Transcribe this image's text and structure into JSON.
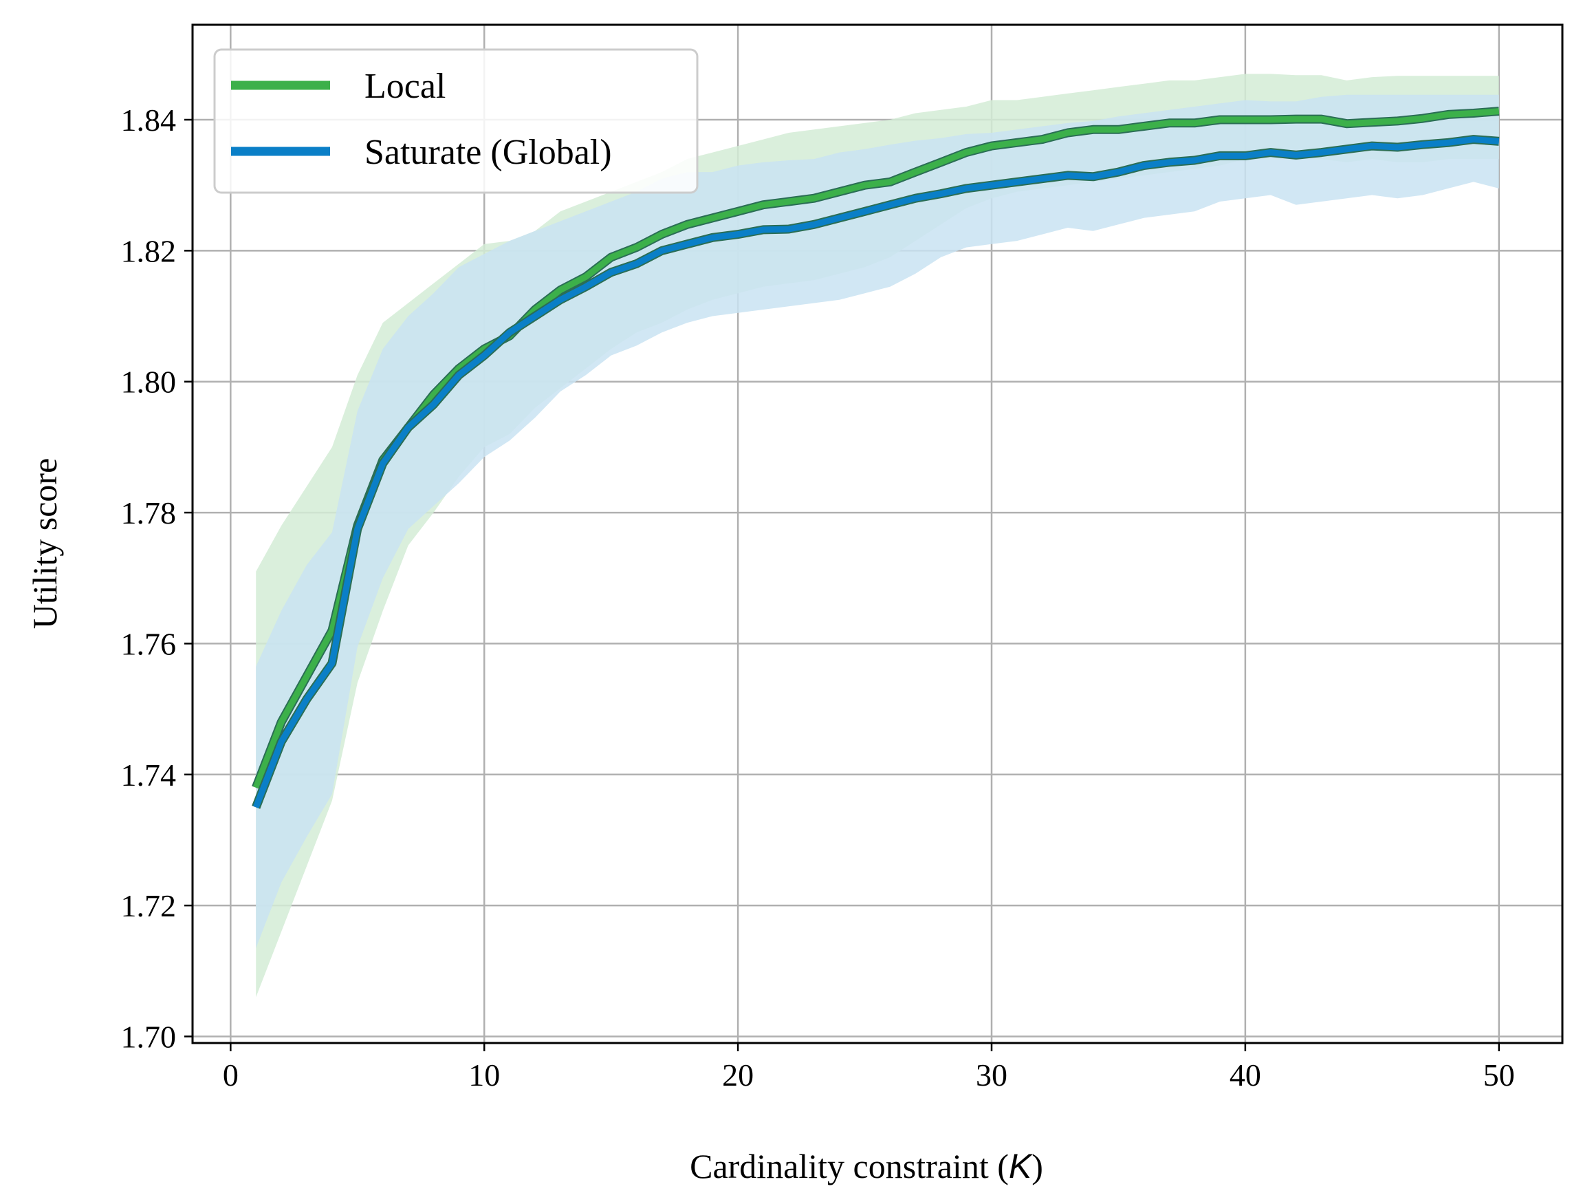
{
  "chart_data": {
    "type": "line",
    "title": "",
    "xlabel_prefix": "Cardinality constraint (",
    "xlabel_var": "K",
    "xlabel_suffix": ")",
    "ylabel": "Utility score",
    "xlim": [
      -1.5,
      52.5
    ],
    "ylim": [
      1.699,
      1.8545
    ],
    "xticks": [
      0,
      10,
      20,
      30,
      40,
      50
    ],
    "xtick_labels": [
      "0",
      "10",
      "20",
      "30",
      "40",
      "50"
    ],
    "yticks": [
      1.7,
      1.72,
      1.74,
      1.76,
      1.78,
      1.8,
      1.82,
      1.84
    ],
    "ytick_labels": [
      "1.70",
      "1.72",
      "1.74",
      "1.76",
      "1.78",
      "1.80",
      "1.82",
      "1.84"
    ],
    "grid": true,
    "legend_position": "top-left",
    "x": [
      1,
      2,
      3,
      4,
      5,
      6,
      7,
      8,
      9,
      10,
      11,
      12,
      13,
      14,
      15,
      16,
      17,
      18,
      19,
      20,
      21,
      22,
      23,
      24,
      25,
      26,
      27,
      28,
      29,
      30,
      31,
      32,
      33,
      34,
      35,
      36,
      37,
      38,
      39,
      40,
      41,
      42,
      43,
      44,
      45,
      46,
      47,
      48,
      49,
      50
    ],
    "series": [
      {
        "name": "Local",
        "color": "#3cb04a",
        "band_color": "#d4ecd6",
        "values": [
          1.738,
          1.748,
          1.755,
          1.762,
          1.778,
          1.788,
          1.793,
          1.798,
          1.802,
          1.805,
          1.807,
          1.811,
          1.814,
          1.816,
          1.819,
          1.8205,
          1.8225,
          1.824,
          1.825,
          1.826,
          1.827,
          1.8275,
          1.828,
          1.829,
          1.83,
          1.8305,
          1.832,
          1.8335,
          1.835,
          1.836,
          1.8365,
          1.837,
          1.838,
          1.8385,
          1.8385,
          1.839,
          1.8395,
          1.8395,
          1.84,
          1.84,
          1.84,
          1.8401,
          1.8401,
          1.8394,
          1.8396,
          1.8398,
          1.8402,
          1.8408,
          1.841,
          1.8413
        ],
        "upper": [
          1.771,
          1.778,
          1.784,
          1.79,
          1.801,
          1.809,
          1.812,
          1.815,
          1.818,
          1.821,
          1.8215,
          1.823,
          1.826,
          1.8275,
          1.829,
          1.8305,
          1.832,
          1.834,
          1.835,
          1.836,
          1.837,
          1.838,
          1.8385,
          1.839,
          1.8395,
          1.84,
          1.841,
          1.8415,
          1.842,
          1.843,
          1.843,
          1.8435,
          1.844,
          1.8445,
          1.845,
          1.8455,
          1.846,
          1.846,
          1.8465,
          1.847,
          1.847,
          1.8468,
          1.8468,
          1.846,
          1.8465,
          1.8467,
          1.8467,
          1.8467,
          1.8467,
          1.8467
        ],
        "lower": [
          1.706,
          1.716,
          1.726,
          1.736,
          1.754,
          1.765,
          1.775,
          1.78,
          1.7855,
          1.79,
          1.792,
          1.796,
          1.799,
          1.802,
          1.805,
          1.8075,
          1.809,
          1.811,
          1.8125,
          1.8135,
          1.8145,
          1.815,
          1.8155,
          1.8165,
          1.8175,
          1.819,
          1.8215,
          1.824,
          1.8265,
          1.828,
          1.829,
          1.8295,
          1.83,
          1.8305,
          1.831,
          1.8315,
          1.832,
          1.8325,
          1.833,
          1.834,
          1.8345,
          1.8345,
          1.834,
          1.8335,
          1.834,
          1.8335,
          1.8335,
          1.834,
          1.834,
          1.834
        ]
      },
      {
        "name": "Saturate (Global)",
        "color": "#0a7fc7",
        "band_color": "#c9e3f2",
        "values": [
          1.735,
          1.745,
          1.7515,
          1.757,
          1.7775,
          1.7875,
          1.793,
          1.7965,
          1.801,
          1.804,
          1.8075,
          1.81,
          1.8125,
          1.8145,
          1.8167,
          1.818,
          1.82,
          1.821,
          1.822,
          1.8225,
          1.8232,
          1.8233,
          1.824,
          1.825,
          1.826,
          1.827,
          1.828,
          1.8287,
          1.8295,
          1.83,
          1.8305,
          1.831,
          1.8315,
          1.8313,
          1.832,
          1.833,
          1.8335,
          1.8338,
          1.8345,
          1.8345,
          1.835,
          1.8346,
          1.835,
          1.8355,
          1.836,
          1.8358,
          1.8362,
          1.8365,
          1.837,
          1.8367
        ],
        "upper": [
          1.7565,
          1.765,
          1.772,
          1.777,
          1.7955,
          1.805,
          1.81,
          1.8135,
          1.8175,
          1.8195,
          1.8215,
          1.823,
          1.8245,
          1.826,
          1.8275,
          1.829,
          1.831,
          1.832,
          1.832,
          1.833,
          1.8335,
          1.8338,
          1.834,
          1.835,
          1.8355,
          1.8362,
          1.8368,
          1.8372,
          1.8378,
          1.838,
          1.8385,
          1.839,
          1.8395,
          1.8398,
          1.8405,
          1.841,
          1.8415,
          1.842,
          1.8425,
          1.843,
          1.8428,
          1.8428,
          1.8435,
          1.8438,
          1.8438,
          1.8438,
          1.8438,
          1.8438,
          1.8438,
          1.8438
        ],
        "lower": [
          1.7135,
          1.7235,
          1.7305,
          1.737,
          1.7595,
          1.77,
          1.7775,
          1.781,
          1.7845,
          1.7885,
          1.791,
          1.7945,
          1.7985,
          1.801,
          1.804,
          1.8055,
          1.8075,
          1.809,
          1.81,
          1.8105,
          1.811,
          1.8115,
          1.812,
          1.8125,
          1.8135,
          1.8145,
          1.8165,
          1.819,
          1.8205,
          1.821,
          1.8215,
          1.8225,
          1.8235,
          1.823,
          1.824,
          1.825,
          1.8255,
          1.826,
          1.8275,
          1.828,
          1.8285,
          1.827,
          1.8275,
          1.828,
          1.8285,
          1.828,
          1.8285,
          1.8295,
          1.8305,
          1.8295
        ]
      }
    ]
  }
}
